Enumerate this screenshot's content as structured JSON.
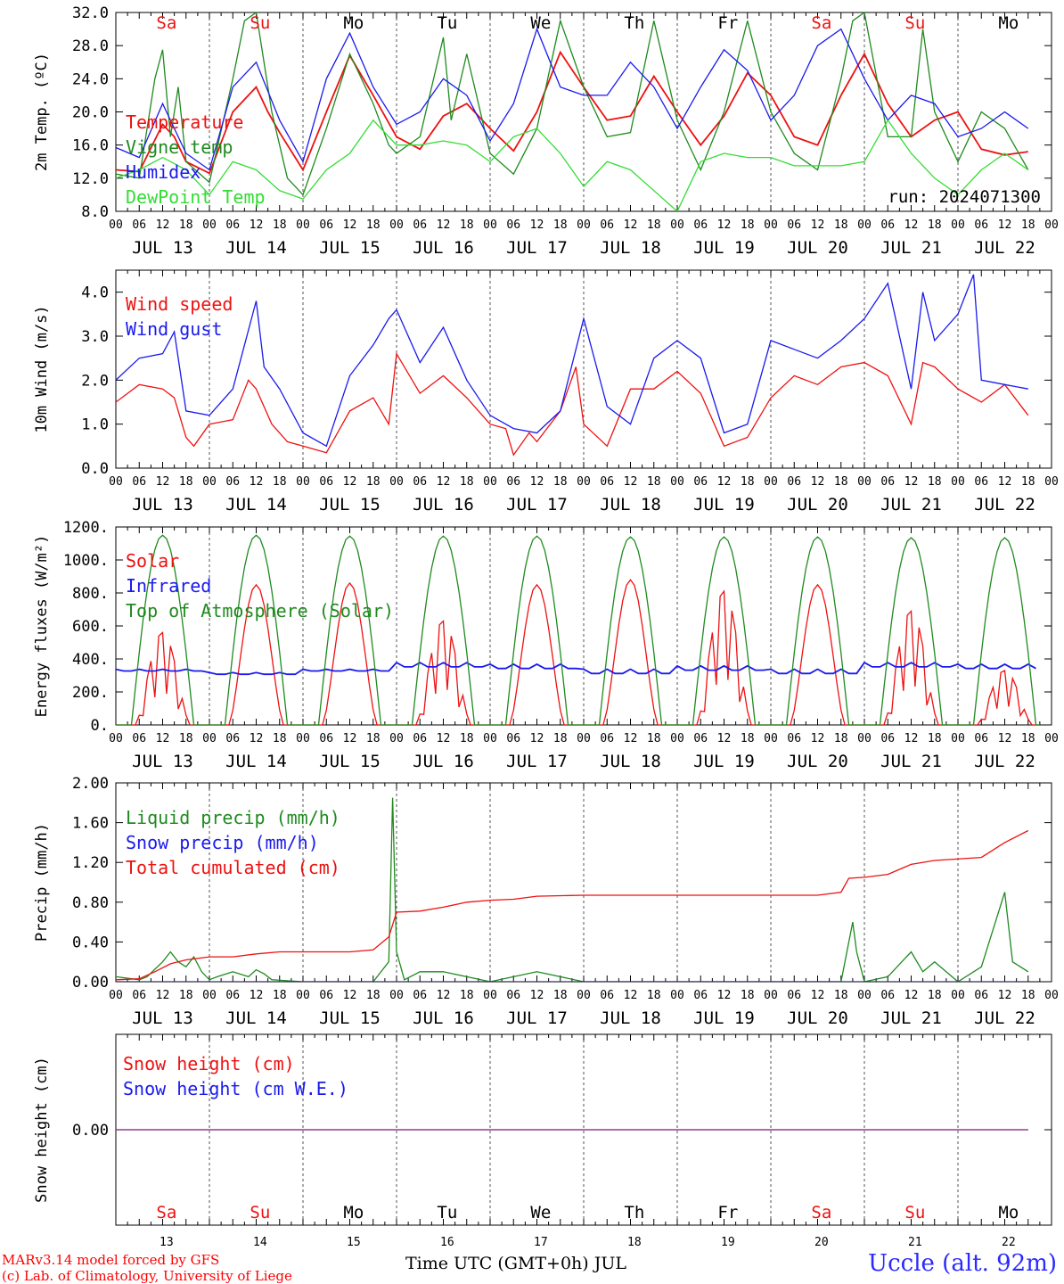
{
  "colors": {
    "red": "#ee1111",
    "darkgreen": "#1f8a1f",
    "blue": "#1a1aee",
    "lightgreen": "#33dd33",
    "purple": "#7a3aa0"
  },
  "day_names": [
    "Sa",
    "Su",
    "Mo",
    "Tu",
    "We",
    "Th",
    "Fr",
    "Sa",
    "Su",
    "Mo"
  ],
  "weekend_flags": [
    true,
    true,
    false,
    false,
    false,
    false,
    false,
    true,
    true,
    false
  ],
  "date_labels": [
    "JUL 13",
    "JUL 14",
    "JUL 15",
    "JUL 16",
    "JUL 17",
    "JUL 18",
    "JUL 19",
    "JUL 20",
    "JUL 21",
    "JUL 22"
  ],
  "day_numbers": [
    "13",
    "14",
    "15",
    "16",
    "17",
    "18",
    "19",
    "20",
    "21",
    "22"
  ],
  "hour_ticks": [
    "00",
    "06",
    "12",
    "18"
  ],
  "footer": {
    "model_line1": "MARv3.14 model forced by GFS",
    "model_line2": "(c) Lab. of Climatology, University of Liege",
    "xaxis_label": "Time UTC (GMT+0h) JUL",
    "station": "Uccle (alt. 92m)"
  },
  "chart_data": [
    {
      "type": "line",
      "ylabel": "2m Temp. (ºC)",
      "ylim": [
        8,
        32
      ],
      "yticks": [
        "8.0",
        "12.0",
        "16.0",
        "20.0",
        "24.0",
        "28.0",
        "32.0"
      ],
      "annotation": "run: 2024071300",
      "x_unit": "hours since JUL 13 00 UTC",
      "series": [
        {
          "name": "Temperature",
          "color": "#ee1111",
          "x": [
            0,
            6,
            12,
            15,
            18,
            24,
            30,
            36,
            39,
            42,
            48,
            54,
            60,
            66,
            72,
            78,
            84,
            90,
            96,
            102,
            108,
            114,
            120,
            126,
            132,
            138,
            144,
            150,
            156,
            162,
            168,
            174,
            180,
            186,
            192,
            198,
            204,
            210,
            216,
            222,
            228,
            234
          ],
          "values": [
            13,
            12.8,
            18.5,
            17,
            14,
            12.6,
            20,
            23,
            20,
            17.5,
            13,
            20,
            26.8,
            22,
            17,
            15.5,
            19.5,
            21,
            18,
            15.3,
            20,
            27.2,
            23,
            19,
            19.5,
            24.3,
            20,
            16,
            19.5,
            24.7,
            22,
            17,
            16,
            22,
            27,
            21,
            17,
            19,
            20,
            15.5,
            14.8,
            15.2
          ]
        },
        {
          "name": "Vigne temp",
          "color": "#1f8a1f",
          "x": [
            0,
            6,
            10,
            12,
            14,
            16,
            18,
            24,
            30,
            33,
            36,
            40,
            44,
            48,
            54,
            60,
            66,
            70,
            72,
            78,
            84,
            86,
            90,
            96,
            102,
            108,
            114,
            120,
            126,
            132,
            138,
            144,
            150,
            156,
            162,
            168,
            174,
            180,
            186,
            189,
            192,
            198,
            204,
            207,
            210,
            216,
            222,
            228,
            234
          ],
          "values": [
            12.5,
            12,
            24,
            27.5,
            17,
            23,
            14,
            11.5,
            24,
            31,
            32,
            20,
            12,
            10,
            18,
            27,
            21,
            16,
            15,
            17,
            29,
            19,
            27,
            15,
            12.5,
            18,
            31,
            23,
            17,
            17.5,
            31,
            19,
            13,
            20,
            31,
            20,
            15,
            13,
            24,
            31,
            32,
            17,
            17,
            30,
            20,
            14,
            20,
            18,
            13
          ]
        },
        {
          "name": "Humidex",
          "color": "#1a1aee",
          "x": [
            0,
            6,
            12,
            18,
            24,
            30,
            36,
            42,
            48,
            54,
            60,
            66,
            72,
            78,
            84,
            90,
            96,
            102,
            108,
            114,
            120,
            126,
            132,
            138,
            144,
            150,
            156,
            162,
            168,
            174,
            180,
            186,
            192,
            198,
            204,
            210,
            216,
            222,
            228,
            234
          ],
          "values": [
            15.7,
            14.5,
            21,
            15,
            13,
            23,
            26,
            19,
            14,
            24,
            29.5,
            23,
            18.5,
            20,
            24,
            22,
            16.5,
            21,
            30,
            23,
            22,
            22,
            26,
            23,
            18,
            23,
            27.5,
            25,
            19,
            22,
            28,
            30,
            24,
            19,
            22,
            21,
            17,
            18,
            20,
            18
          ]
        },
        {
          "name": "DewPoint Temp",
          "color": "#33dd33",
          "x": [
            0,
            6,
            12,
            18,
            24,
            30,
            36,
            42,
            48,
            54,
            60,
            66,
            72,
            78,
            84,
            90,
            96,
            102,
            108,
            114,
            120,
            126,
            132,
            138,
            144,
            150,
            156,
            162,
            168,
            174,
            180,
            186,
            192,
            198,
            204,
            210,
            216,
            222,
            228,
            234
          ],
          "values": [
            12,
            13,
            14.5,
            13,
            10,
            14,
            13,
            10.5,
            9.5,
            13,
            15,
            19,
            16,
            16,
            16.5,
            16,
            14,
            17,
            18,
            15,
            11,
            14,
            13,
            10.5,
            8,
            14,
            15,
            14.5,
            14.5,
            13.5,
            13.5,
            13.5,
            14,
            19,
            15,
            12,
            10,
            13,
            15,
            13
          ]
        }
      ]
    },
    {
      "type": "line",
      "ylabel": "10m Wind (m/s)",
      "ylim": [
        0,
        4.5
      ],
      "yticks": [
        "0.0",
        "1.0",
        "2.0",
        "3.0",
        "4.0"
      ],
      "series": [
        {
          "name": "Wind speed",
          "color": "#ee1111",
          "x": [
            0,
            6,
            12,
            15,
            18,
            20,
            24,
            30,
            34,
            36,
            40,
            44,
            48,
            54,
            60,
            66,
            70,
            72,
            78,
            84,
            90,
            96,
            100,
            102,
            106,
            108,
            114,
            118,
            120,
            126,
            132,
            138,
            144,
            150,
            156,
            162,
            168,
            174,
            180,
            186,
            192,
            198,
            204,
            207,
            210,
            216,
            222,
            228,
            234
          ],
          "values": [
            1.5,
            1.9,
            1.8,
            1.6,
            0.7,
            0.5,
            1.0,
            1.1,
            2.0,
            1.8,
            1.0,
            0.6,
            0.5,
            0.35,
            1.3,
            1.6,
            1.0,
            2.6,
            1.7,
            2.1,
            1.6,
            1.0,
            0.9,
            0.3,
            0.8,
            0.6,
            1.3,
            2.3,
            1.0,
            0.5,
            1.8,
            1.8,
            2.2,
            1.7,
            0.5,
            0.7,
            1.6,
            2.1,
            1.9,
            2.3,
            2.4,
            2.1,
            1.0,
            2.4,
            2.3,
            1.8,
            1.5,
            1.9,
            1.2
          ]
        },
        {
          "name": "Wind gust",
          "color": "#1a1aee",
          "x": [
            0,
            6,
            12,
            15,
            18,
            24,
            30,
            36,
            38,
            42,
            48,
            54,
            60,
            66,
            70,
            72,
            78,
            84,
            90,
            96,
            102,
            108,
            114,
            120,
            126,
            132,
            138,
            144,
            150,
            156,
            162,
            168,
            174,
            180,
            186,
            192,
            198,
            204,
            207,
            210,
            216,
            220,
            222,
            228,
            234
          ],
          "values": [
            2.0,
            2.5,
            2.6,
            3.1,
            1.3,
            1.2,
            1.8,
            3.8,
            2.3,
            1.8,
            0.8,
            0.5,
            2.1,
            2.8,
            3.4,
            3.6,
            2.4,
            3.2,
            2.0,
            1.2,
            0.9,
            0.8,
            1.3,
            3.4,
            1.4,
            1.0,
            2.5,
            2.9,
            2.5,
            0.8,
            1.0,
            2.9,
            2.7,
            2.5,
            2.9,
            3.4,
            4.2,
            1.8,
            4.0,
            2.9,
            3.5,
            4.4,
            2.0,
            1.9,
            1.8
          ]
        }
      ]
    },
    {
      "type": "line",
      "ylabel": "Energy fluxes (W/m²)",
      "ylim": [
        0,
        1200
      ],
      "yticks": [
        "0.",
        "200.",
        "400.",
        "600.",
        "800.",
        "1000.",
        "1200."
      ],
      "series": [
        {
          "name": "Solar",
          "color": "#ee1111",
          "daily_peak": [
            560,
            850,
            860,
            630,
            850,
            880,
            810,
            850,
            690,
            330
          ]
        },
        {
          "name": "Infrared",
          "color": "#1a1aee",
          "daily_mean": [
            330,
            310,
            330,
            360,
            350,
            320,
            340,
            320,
            360,
            350
          ]
        },
        {
          "name": "Top of Atmosphere (Solar)",
          "color": "#1f8a1f",
          "daily_peak": [
            1150,
            1150,
            1145,
            1145,
            1145,
            1140,
            1140,
            1140,
            1135,
            1135
          ]
        }
      ]
    },
    {
      "type": "line",
      "ylabel": "Precip (mm/h)",
      "ylim": [
        0,
        2.0
      ],
      "yticks": [
        "0.00",
        "0.40",
        "0.80",
        "1.20",
        "1.60",
        "2.00"
      ],
      "series": [
        {
          "name": "Liquid precip (mm/h)",
          "color": "#1f8a1f",
          "x": [
            0,
            6,
            8,
            12,
            14,
            16,
            18,
            20,
            22,
            24,
            26,
            30,
            34,
            36,
            38,
            40,
            48,
            60,
            66,
            70,
            71,
            72,
            74,
            78,
            84,
            90,
            96,
            108,
            120,
            132,
            144,
            156,
            168,
            180,
            186,
            189,
            190,
            192,
            198,
            204,
            207,
            210,
            216,
            222,
            228,
            230,
            234
          ],
          "values": [
            0.05,
            0.02,
            0.05,
            0.2,
            0.3,
            0.2,
            0.15,
            0.25,
            0.1,
            0.02,
            0.05,
            0.1,
            0.05,
            0.12,
            0.08,
            0.02,
            0.0,
            0.0,
            0.0,
            0.2,
            1.85,
            0.3,
            0.02,
            0.1,
            0.1,
            0.05,
            0.0,
            0.1,
            0.0,
            0.0,
            0.0,
            0.0,
            0.0,
            0.0,
            0.0,
            0.6,
            0.3,
            0.0,
            0.05,
            0.3,
            0.1,
            0.2,
            0.0,
            0.15,
            0.9,
            0.2,
            0.1
          ]
        },
        {
          "name": "Snow precip (mm/h)",
          "color": "#1a1aee",
          "x": [
            0,
            234
          ],
          "values": [
            0,
            0
          ]
        },
        {
          "name": "Total cumulated (cm)",
          "color": "#ee1111",
          "x": [
            0,
            6,
            10,
            14,
            18,
            24,
            30,
            36,
            42,
            48,
            60,
            66,
            70,
            72,
            78,
            84,
            90,
            96,
            102,
            108,
            120,
            132,
            144,
            156,
            168,
            180,
            186,
            188,
            192,
            198,
            204,
            210,
            222,
            228,
            234
          ],
          "values": [
            0.02,
            0.03,
            0.1,
            0.18,
            0.22,
            0.25,
            0.25,
            0.28,
            0.3,
            0.3,
            0.3,
            0.32,
            0.45,
            0.7,
            0.71,
            0.75,
            0.8,
            0.82,
            0.83,
            0.86,
            0.87,
            0.87,
            0.87,
            0.87,
            0.87,
            0.87,
            0.9,
            1.04,
            1.05,
            1.08,
            1.18,
            1.22,
            1.25,
            1.4,
            1.52
          ]
        }
      ]
    },
    {
      "type": "line",
      "ylabel": "Snow height (cm)",
      "ylim": [
        -1,
        1
      ],
      "yticks": [
        "0.00"
      ],
      "series": [
        {
          "name": "Snow height (cm)",
          "color": "#ee1111",
          "x": [
            0,
            234
          ],
          "values": [
            0,
            0
          ]
        },
        {
          "name": "Snow height (cm W.E.)",
          "color": "#1a1aee",
          "x": [
            0,
            234
          ],
          "values": [
            0,
            0
          ]
        }
      ]
    }
  ]
}
